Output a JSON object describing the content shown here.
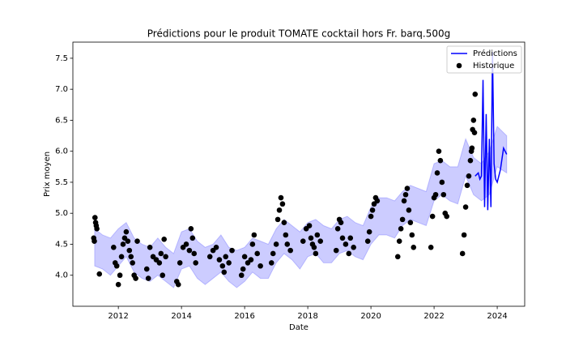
{
  "chart_data": {
    "type": "forecast",
    "title": "Prédictions pour le produit TOMATE cocktail hors Fr. barq.500g",
    "xlabel": "Date",
    "ylabel": "Prix moyen",
    "xlim": [
      2010.56,
      2024.87
    ],
    "ylim": [
      3.5,
      7.76
    ],
    "xticks": [
      2012,
      2014,
      2016,
      2018,
      2020,
      2022,
      2024
    ],
    "yticks": [
      {
        "value": 4.0,
        "label": "4.0"
      },
      4.5,
      {
        "value": 5.0,
        "label": "5.0"
      },
      5.5,
      {
        "value": 6.0,
        "label": "6.0"
      },
      6.5,
      {
        "value": 7.0,
        "label": "7.0"
      },
      7.5
    ],
    "legend": "upper right",
    "band": {
      "color": "#0000ff",
      "x": [
        2011.25,
        2011.5,
        2011.75,
        2012.0,
        2012.25,
        2012.5,
        2012.75,
        2013.0,
        2013.25,
        2013.5,
        2013.75,
        2014.0,
        2014.25,
        2014.5,
        2014.75,
        2015.0,
        2015.25,
        2015.5,
        2015.75,
        2016.0,
        2016.25,
        2016.5,
        2016.75,
        2017.0,
        2017.25,
        2017.5,
        2017.75,
        2018.0,
        2018.25,
        2018.5,
        2018.75,
        2019.0,
        2019.25,
        2019.5,
        2019.75,
        2020.0,
        2020.25,
        2020.5,
        2020.75,
        2021.0,
        2021.25,
        2021.5,
        2021.75,
        2022.0,
        2022.25,
        2022.5,
        2022.75,
        2023.0,
        2023.25,
        2023.5,
        2023.75,
        2024.0,
        2024.3
      ],
      "upper": [
        4.75,
        4.65,
        4.6,
        4.75,
        4.85,
        4.6,
        4.5,
        4.45,
        4.6,
        4.45,
        4.35,
        4.7,
        4.75,
        4.55,
        4.45,
        4.5,
        4.65,
        4.45,
        4.4,
        4.45,
        4.6,
        4.55,
        4.5,
        4.75,
        4.9,
        4.8,
        4.7,
        4.85,
        4.9,
        4.8,
        4.75,
        4.9,
        4.95,
        4.85,
        4.8,
        5.1,
        5.25,
        5.25,
        5.2,
        5.35,
        5.45,
        5.4,
        5.35,
        5.8,
        5.85,
        5.75,
        5.75,
        6.2,
        5.9,
        5.8,
        6.0,
        6.4,
        6.25
      ],
      "lower": [
        4.15,
        4.1,
        4.0,
        4.15,
        4.3,
        4.05,
        3.95,
        3.9,
        4.0,
        3.9,
        3.8,
        4.1,
        4.15,
        3.95,
        3.85,
        3.95,
        4.05,
        3.9,
        3.8,
        3.9,
        4.05,
        3.95,
        3.95,
        4.2,
        4.35,
        4.25,
        4.1,
        4.3,
        4.35,
        4.2,
        4.2,
        4.35,
        4.4,
        4.3,
        4.25,
        4.5,
        4.65,
        4.65,
        4.6,
        4.8,
        4.9,
        4.85,
        4.8,
        5.2,
        5.3,
        5.2,
        5.15,
        5.6,
        5.3,
        5.2,
        5.3,
        5.75,
        5.65
      ]
    },
    "series": [
      {
        "name": "Prédictions",
        "color": "#0000ff",
        "x": [
          2023.3,
          2023.4,
          2023.45,
          2023.5,
          2023.55,
          2023.6,
          2023.65,
          2023.7,
          2023.75,
          2023.8,
          2023.85,
          2023.9,
          2023.95,
          2024.0,
          2024.1,
          2024.2,
          2024.3
        ],
        "values": [
          5.6,
          5.65,
          5.55,
          5.6,
          7.15,
          5.1,
          6.6,
          5.05,
          6.2,
          5.1,
          7.6,
          5.8,
          5.55,
          5.5,
          5.7,
          6.05,
          5.95
        ]
      },
      {
        "name": "Historique",
        "color": "#000000",
        "x": [
          2011.22,
          2011.24,
          2011.26,
          2011.28,
          2011.3,
          2011.32,
          2011.4,
          2011.85,
          2011.9,
          2011.95,
          2012.0,
          2012.05,
          2012.1,
          2012.15,
          2012.2,
          2012.25,
          2012.3,
          2012.35,
          2012.4,
          2012.45,
          2012.5,
          2012.55,
          2012.6,
          2012.9,
          2012.95,
          2013.0,
          2013.1,
          2013.2,
          2013.3,
          2013.35,
          2013.4,
          2013.45,
          2013.5,
          2013.85,
          2013.9,
          2013.95,
          2014.05,
          2014.15,
          2014.25,
          2014.3,
          2014.35,
          2014.4,
          2014.45,
          2014.9,
          2015.0,
          2015.1,
          2015.2,
          2015.3,
          2015.35,
          2015.4,
          2015.5,
          2015.6,
          2015.9,
          2015.95,
          2016.0,
          2016.1,
          2016.2,
          2016.25,
          2016.3,
          2016.4,
          2016.5,
          2016.85,
          2016.9,
          2017.0,
          2017.05,
          2017.1,
          2017.15,
          2017.2,
          2017.25,
          2017.3,
          2017.35,
          2017.45,
          2017.85,
          2017.95,
          2018.05,
          2018.1,
          2018.15,
          2018.2,
          2018.25,
          2018.3,
          2018.4,
          2018.9,
          2018.95,
          2019.0,
          2019.05,
          2019.1,
          2019.2,
          2019.3,
          2019.35,
          2019.45,
          2019.9,
          2019.95,
          2020.0,
          2020.05,
          2020.1,
          2020.15,
          2020.2,
          2020.85,
          2020.9,
          2020.95,
          2021.0,
          2021.05,
          2021.1,
          2021.15,
          2021.2,
          2021.25,
          2021.3,
          2021.35,
          2021.9,
          2021.95,
          2022.0,
          2022.05,
          2022.1,
          2022.15,
          2022.2,
          2022.25,
          2022.3,
          2022.35,
          2022.4,
          2022.9,
          2022.95,
          2023.0,
          2023.05,
          2023.1,
          2023.15,
          2023.18,
          2023.2,
          2023.22,
          2023.25,
          2023.28,
          2023.3
        ],
        "values": [
          4.6,
          4.55,
          4.93,
          4.85,
          4.8,
          4.75,
          4.02,
          4.45,
          4.2,
          4.15,
          3.85,
          4.0,
          4.3,
          4.5,
          4.6,
          4.7,
          4.55,
          4.4,
          4.3,
          4.2,
          4.0,
          3.95,
          4.55,
          4.1,
          3.95,
          4.45,
          4.3,
          4.25,
          4.2,
          4.35,
          4.0,
          4.58,
          4.3,
          3.9,
          3.85,
          4.2,
          4.45,
          4.5,
          4.4,
          4.75,
          4.6,
          4.35,
          4.2,
          4.3,
          4.4,
          4.45,
          4.25,
          4.15,
          4.05,
          4.3,
          4.2,
          4.4,
          4.0,
          4.1,
          4.3,
          4.2,
          4.25,
          4.5,
          4.65,
          4.35,
          4.15,
          4.2,
          4.35,
          4.5,
          4.9,
          5.05,
          5.25,
          5.15,
          4.85,
          4.65,
          4.5,
          4.4,
          4.55,
          4.75,
          4.8,
          4.6,
          4.5,
          4.45,
          4.35,
          4.65,
          4.55,
          4.4,
          4.75,
          4.9,
          4.85,
          4.6,
          4.5,
          4.35,
          4.6,
          4.45,
          4.55,
          4.7,
          4.95,
          5.05,
          5.15,
          5.25,
          5.2,
          4.3,
          4.55,
          4.75,
          4.9,
          5.2,
          5.3,
          5.4,
          5.05,
          4.85,
          4.65,
          4.45,
          4.45,
          4.95,
          5.25,
          5.3,
          5.65,
          6.0,
          5.85,
          5.5,
          5.3,
          5.0,
          4.95,
          4.35,
          4.65,
          5.1,
          5.45,
          5.6,
          5.85,
          6.0,
          6.05,
          6.35,
          6.5,
          6.3,
          6.92
        ]
      }
    ]
  }
}
